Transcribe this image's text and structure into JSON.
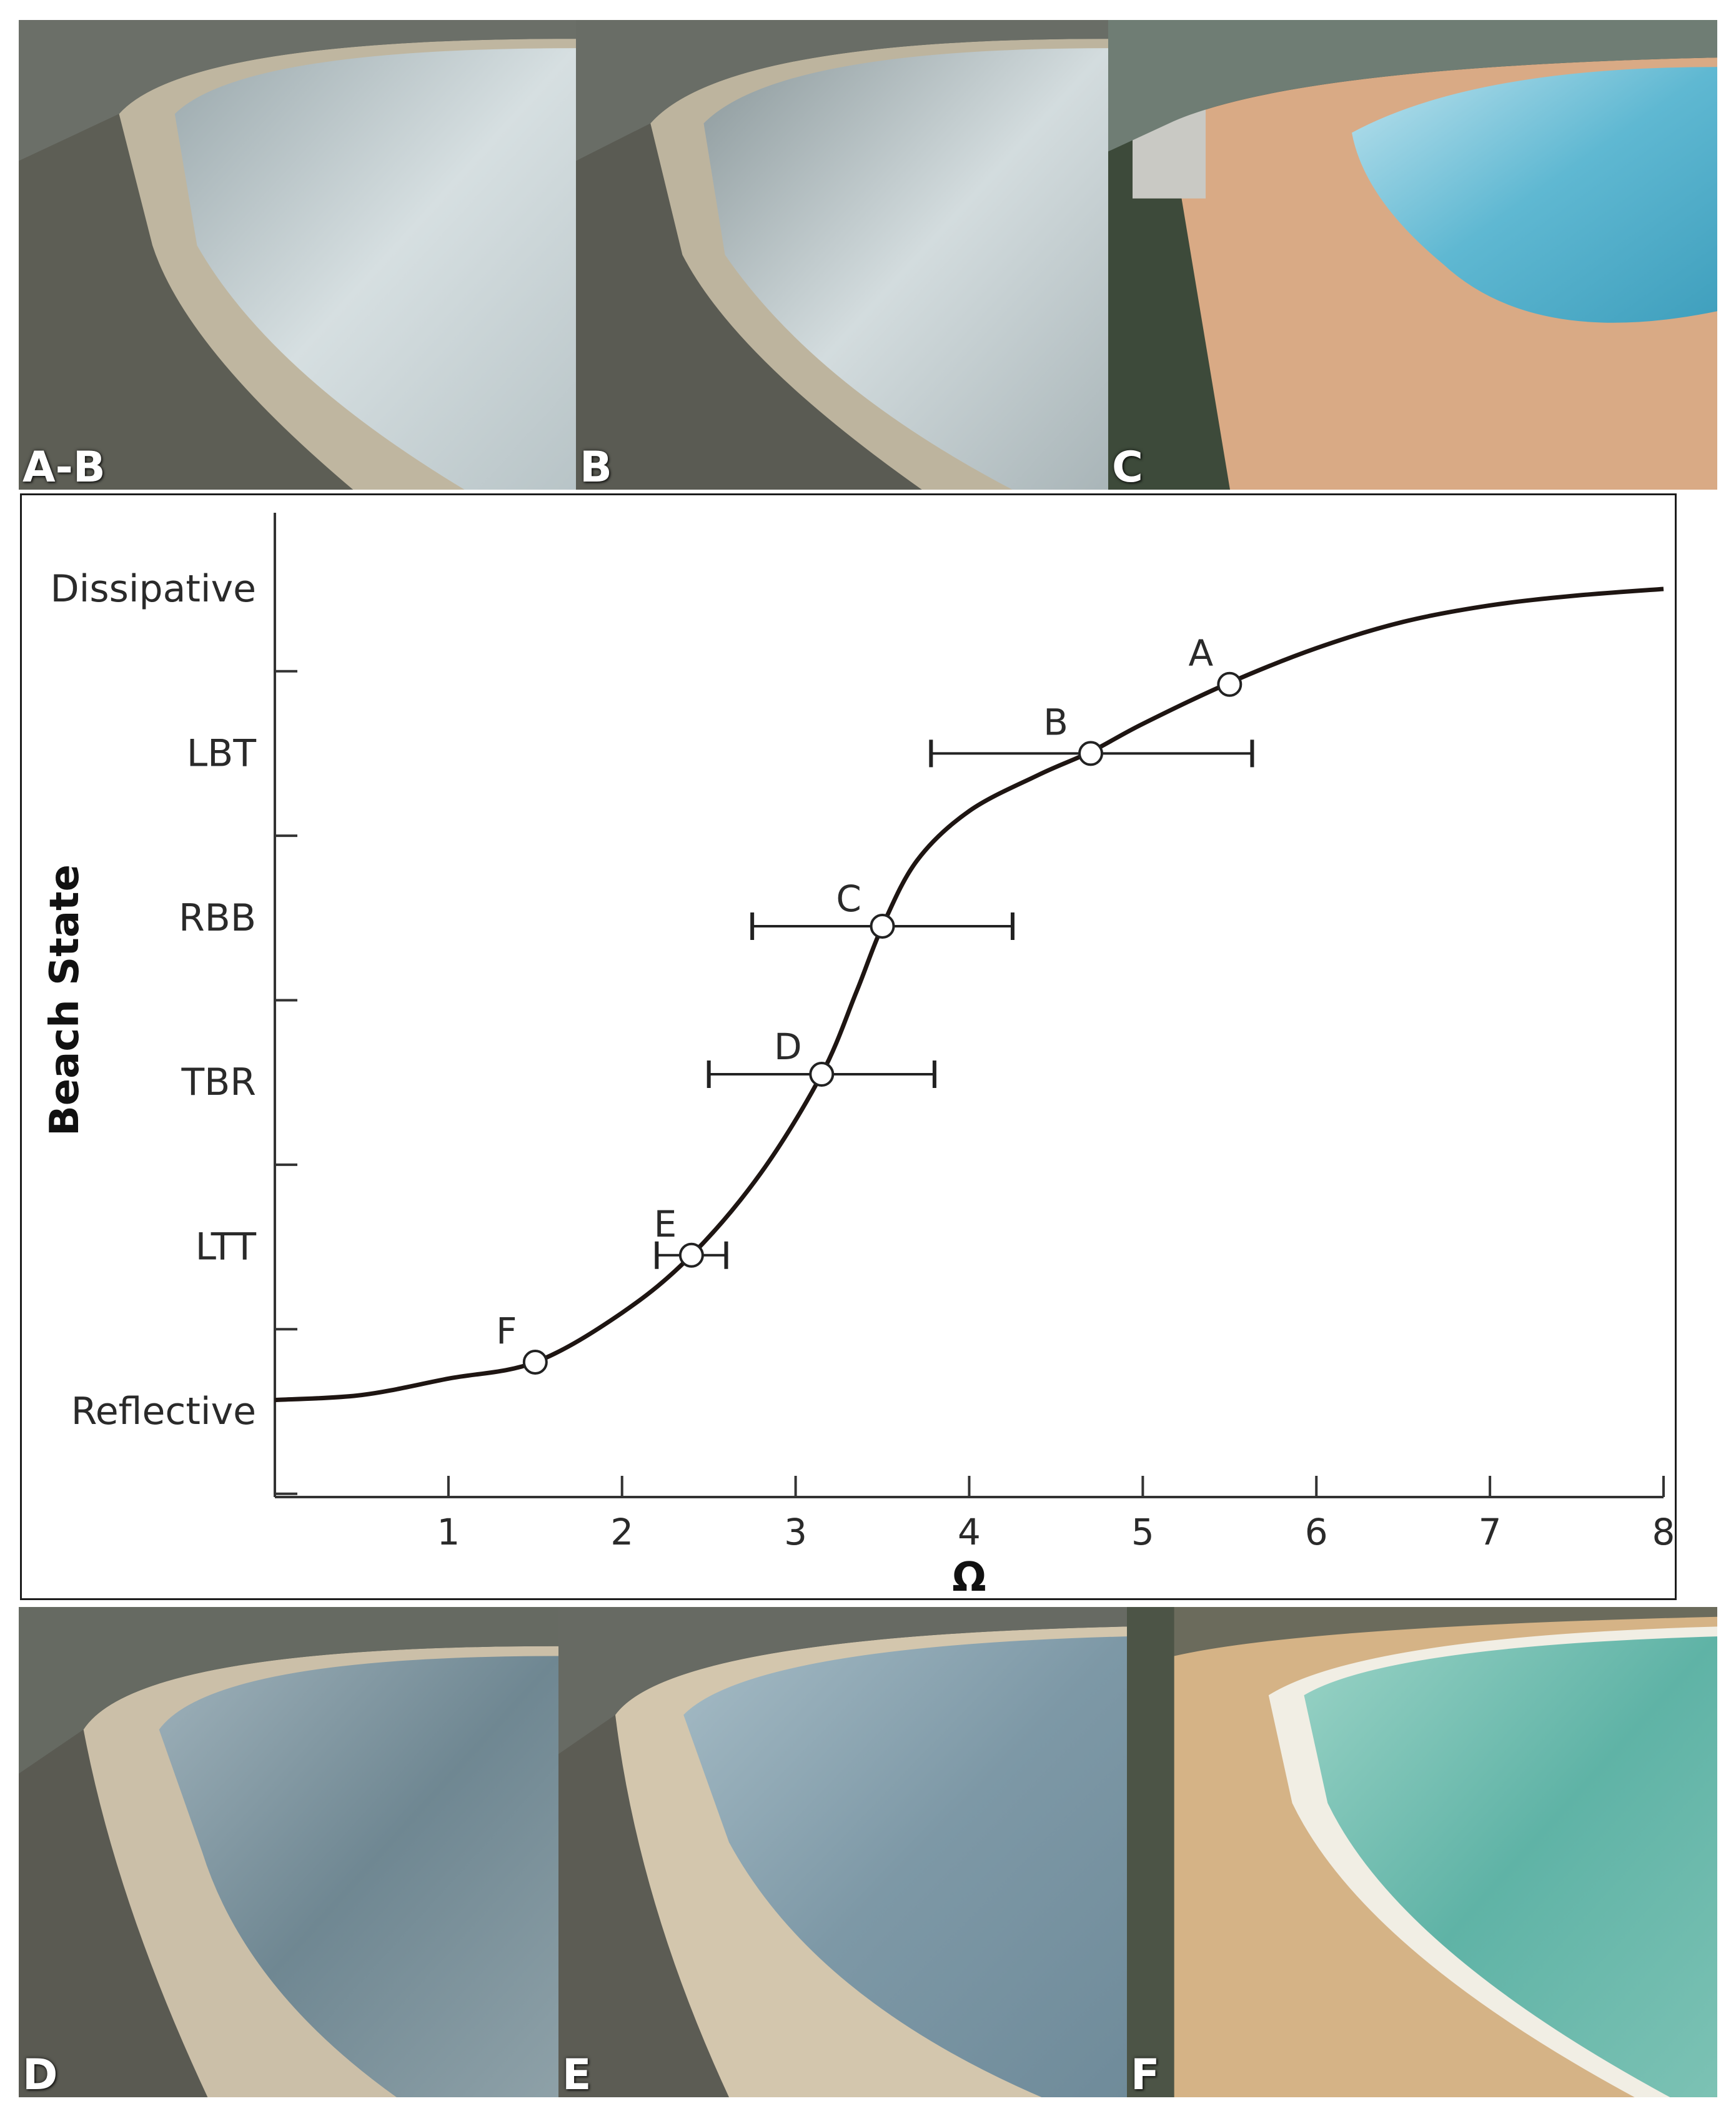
{
  "photos": {
    "a_b": {
      "label": "A-B"
    },
    "b": {
      "label": "B"
    },
    "c": {
      "label": "C"
    },
    "d": {
      "label": "D"
    },
    "e": {
      "label": "E"
    },
    "f": {
      "label": "F"
    }
  },
  "chart_data": {
    "type": "line",
    "xlabel": "Ω",
    "ylabel": "Beach State",
    "xlim": [
      0,
      8
    ],
    "x_ticks": [
      1,
      2,
      3,
      4,
      5,
      6,
      7,
      8
    ],
    "y_categories": [
      "Reflective",
      "LTT",
      "TBR",
      "RBB",
      "LBT",
      "Dissipative"
    ],
    "y_range": [
      0,
      5
    ],
    "grid": false,
    "curve": {
      "x": [
        0,
        0.5,
        1.0,
        1.5,
        2.0,
        2.4,
        2.8,
        3.15,
        3.35,
        3.5,
        3.7,
        4.0,
        4.4,
        4.7,
        5.0,
        5.5,
        6.0,
        6.5,
        7.0,
        7.5,
        8.0
      ],
      "y": [
        0.07,
        0.1,
        0.2,
        0.3,
        0.6,
        0.95,
        1.45,
        2.05,
        2.55,
        2.95,
        3.35,
        3.65,
        3.87,
        4.01,
        4.18,
        4.43,
        4.64,
        4.8,
        4.9,
        4.96,
        5.0
      ]
    },
    "points": [
      {
        "label": "A",
        "x": 5.5,
        "y": 4.42,
        "err": null
      },
      {
        "label": "B",
        "x": 4.7,
        "y": 4.0,
        "err": [
          3.78,
          5.63
        ]
      },
      {
        "label": "C",
        "x": 3.5,
        "y": 2.95,
        "err": [
          2.75,
          4.25
        ]
      },
      {
        "label": "D",
        "x": 3.15,
        "y": 2.05,
        "err": [
          2.5,
          3.8
        ]
      },
      {
        "label": "E",
        "x": 2.4,
        "y": 0.95,
        "err": [
          2.2,
          2.6
        ]
      },
      {
        "label": "F",
        "x": 1.5,
        "y": 0.3,
        "err": null
      }
    ]
  }
}
